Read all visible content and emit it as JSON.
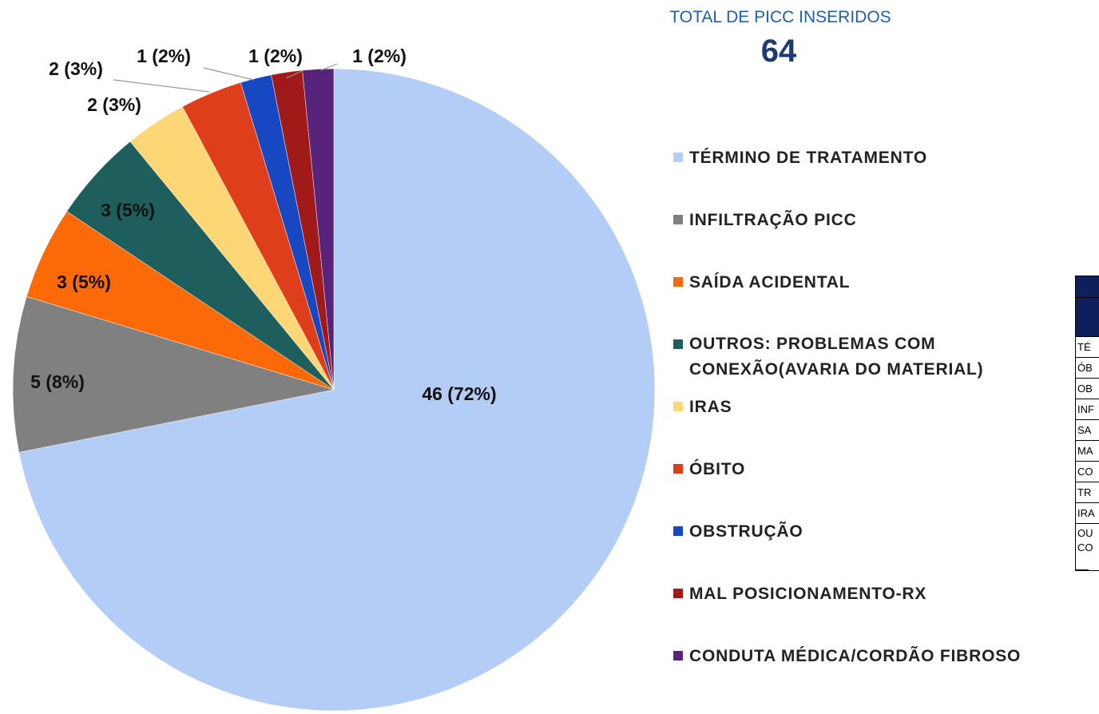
{
  "chart_data": {
    "type": "pie",
    "categories": [
      "TÉRMINO DE TRATAMENTO",
      "INFILTRAÇÃO PICC",
      "SAÍDA ACIDENTAL",
      "OUTROS: PROBLEMAS COM CONEXÃO(AVARIA DO MATERIAL)",
      "IRAS",
      "ÓBITO",
      "OBSTRUÇÃO",
      "MAL POSICIONAMENTO-RX",
      "CONDUTA MÉDICA/CORDÃO FIBROSO"
    ],
    "values": [
      46,
      5,
      3,
      3,
      2,
      2,
      1,
      1,
      1
    ],
    "value_labels": [
      "46 (72%)",
      "5 (8%)",
      "3 (5%)",
      "3 (5%)",
      "2 (3%)",
      "2 (3%)",
      "1 (2%)",
      "1 (2%)",
      "1 (2%)"
    ],
    "colors": [
      "#b4cdf6",
      "#808080",
      "#fb6a07",
      "#1e5e5c",
      "#fdd775",
      "#df3e1b",
      "#1748c2",
      "#a11a1a",
      "#58237a"
    ]
  },
  "total": {
    "label": "TOTAL DE PICC INSERIDOS",
    "value": "64"
  },
  "table": {
    "rows": [
      "TÉ",
      "ÓB",
      "OB",
      "INF",
      "SA",
      "MA",
      "CO",
      "TR",
      "IRA",
      "OU CO"
    ]
  }
}
